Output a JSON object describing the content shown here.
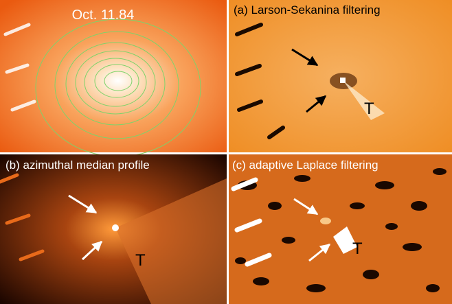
{
  "panels": [
    {
      "label": "Oct. 11.84"
    },
    {
      "label": "(a) Larson-Sekanina filtering",
      "marker": "T"
    },
    {
      "label": "(b) azimuthal median profile",
      "marker": "T"
    },
    {
      "label": "(c) adaptive Laplace filtering",
      "marker": "T"
    }
  ]
}
